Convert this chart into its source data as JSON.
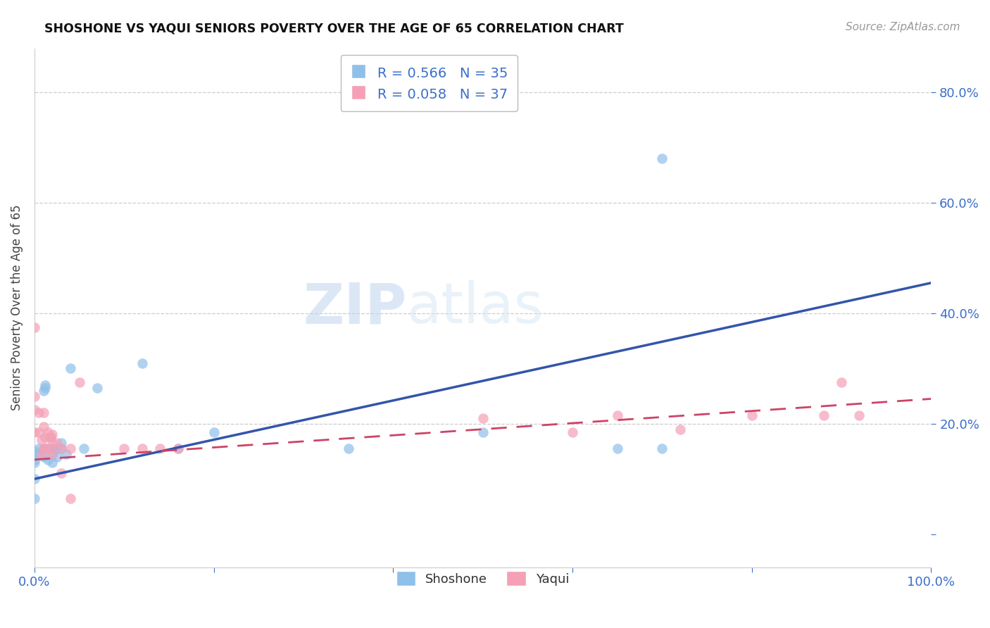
{
  "title": "SHOSHONE VS YAQUI SENIORS POVERTY OVER THE AGE OF 65 CORRELATION CHART",
  "source": "Source: ZipAtlas.com",
  "ylabel": "Seniors Poverty Over the Age of 65",
  "xlim": [
    0.0,
    1.0
  ],
  "ylim": [
    -0.06,
    0.88
  ],
  "shoshone_color": "#8FC0EA",
  "yaqui_color": "#F5A0B5",
  "shoshone_line_color": "#3355AA",
  "yaqui_line_color": "#CC4466",
  "shoshone_R": 0.566,
  "shoshone_N": 35,
  "yaqui_R": 0.058,
  "yaqui_N": 37,
  "watermark_zip": "ZIP",
  "watermark_atlas": "atlas",
  "legend_text_color": "#3B6ECC",
  "shoshone_line_x0": 0.0,
  "shoshone_line_y0": 0.1,
  "shoshone_line_x1": 1.0,
  "shoshone_line_y1": 0.455,
  "yaqui_line_x0": 0.0,
  "yaqui_line_y0": 0.135,
  "yaqui_line_x1": 1.0,
  "yaqui_line_y1": 0.245,
  "shoshone_x": [
    0.005,
    0.005,
    0.01,
    0.01,
    0.01,
    0.012,
    0.012,
    0.015,
    0.015,
    0.018,
    0.018,
    0.02,
    0.02,
    0.02,
    0.025,
    0.025,
    0.03,
    0.03,
    0.035,
    0.04,
    0.0,
    0.0,
    0.0,
    0.0,
    0.0,
    0.055,
    0.07,
    0.12,
    0.16,
    0.2,
    0.35,
    0.5,
    0.65,
    0.7,
    0.7
  ],
  "shoshone_y": [
    0.155,
    0.145,
    0.26,
    0.155,
    0.14,
    0.27,
    0.265,
    0.155,
    0.135,
    0.175,
    0.155,
    0.155,
    0.145,
    0.13,
    0.155,
    0.14,
    0.165,
    0.155,
    0.145,
    0.3,
    0.15,
    0.135,
    0.13,
    0.1,
    0.065,
    0.155,
    0.265,
    0.31,
    0.155,
    0.185,
    0.155,
    0.185,
    0.155,
    0.155,
    0.68
  ],
  "yaqui_x": [
    0.0,
    0.0,
    0.0,
    0.0,
    0.005,
    0.005,
    0.008,
    0.008,
    0.01,
    0.01,
    0.01,
    0.012,
    0.012,
    0.015,
    0.018,
    0.018,
    0.02,
    0.02,
    0.02,
    0.025,
    0.03,
    0.03,
    0.04,
    0.04,
    0.05,
    0.1,
    0.12,
    0.14,
    0.16,
    0.5,
    0.6,
    0.65,
    0.72,
    0.8,
    0.88,
    0.9,
    0.92
  ],
  "yaqui_y": [
    0.375,
    0.25,
    0.225,
    0.185,
    0.22,
    0.185,
    0.17,
    0.145,
    0.22,
    0.195,
    0.155,
    0.175,
    0.155,
    0.185,
    0.175,
    0.155,
    0.18,
    0.165,
    0.145,
    0.165,
    0.155,
    0.11,
    0.155,
    0.065,
    0.275,
    0.155,
    0.155,
    0.155,
    0.155,
    0.21,
    0.185,
    0.215,
    0.19,
    0.215,
    0.215,
    0.275,
    0.215
  ]
}
